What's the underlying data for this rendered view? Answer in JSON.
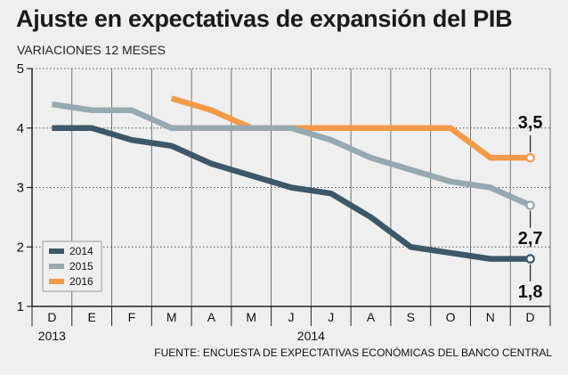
{
  "header": {
    "title": "Ajuste en expectativas de expansión del PIB",
    "subtitle": "VARIACIONES 12 MESES"
  },
  "footer": {
    "source": "FUENTE: ENCUESTA DE EXPECTATIVAS ECONÓMICAS DEL BANCO CENTRAL"
  },
  "chart_data": {
    "type": "line",
    "title": "Ajuste en expectativas de expansión del PIB",
    "subtitle": "VARIACIONES 12 MESES",
    "categories": [
      "D",
      "E",
      "F",
      "M",
      "A",
      "M",
      "J",
      "J",
      "A",
      "S",
      "O",
      "N",
      "D"
    ],
    "year_labels": [
      {
        "label": "2013",
        "category_index": 0
      },
      {
        "label": "2014",
        "category_index": 6.5
      }
    ],
    "ylim": [
      1,
      5
    ],
    "yticks": [
      1,
      2,
      3,
      4,
      5
    ],
    "grid": true,
    "legend_position": "bottom-left",
    "colors": {
      "2014": "#3c5767",
      "2015": "#97a8b0",
      "2016": "#f39a48",
      "grid": "#555555",
      "background": "#efefef"
    },
    "series": [
      {
        "name": "2014",
        "values": [
          4.0,
          4.0,
          3.8,
          3.7,
          3.4,
          3.2,
          3.0,
          2.9,
          2.5,
          2.0,
          1.9,
          1.8,
          1.8
        ]
      },
      {
        "name": "2015",
        "values": [
          4.4,
          4.3,
          4.3,
          4.0,
          4.0,
          4.0,
          4.0,
          3.8,
          3.5,
          3.3,
          3.1,
          3.0,
          2.7
        ]
      },
      {
        "name": "2016",
        "values": [
          null,
          null,
          null,
          4.5,
          4.3,
          4.0,
          4.0,
          4.0,
          4.0,
          4.0,
          4.0,
          3.5,
          3.5
        ]
      }
    ],
    "end_labels": [
      {
        "series": "2016",
        "label": "3,5"
      },
      {
        "series": "2015",
        "label": "2,7"
      },
      {
        "series": "2014",
        "label": "1,8"
      }
    ]
  }
}
